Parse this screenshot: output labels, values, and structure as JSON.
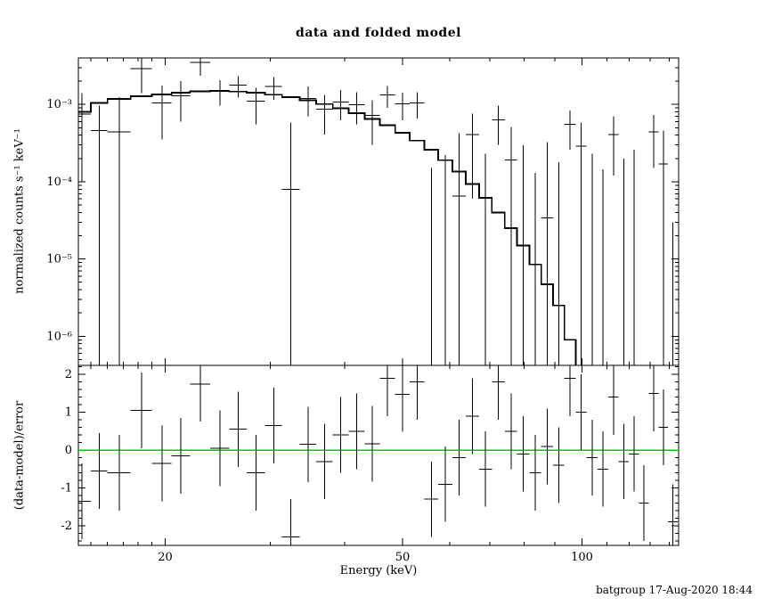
{
  "title": "data and folded model",
  "caption": "batgroup 17-Aug-2020 18:44",
  "chart_data": {
    "type": "scatter",
    "title": "data and folded model",
    "xlabel": "Energy (keV)",
    "x_scale": "log",
    "x_range_keV": [
      14.3,
      145.2
    ],
    "x_ticks": [
      {
        "v": 20,
        "label": "20"
      },
      {
        "v": 50,
        "label": "50"
      },
      {
        "v": 100,
        "label": "100"
      }
    ],
    "colors": {
      "zero_line": "#00C800",
      "data": "#000000",
      "model": "#000000",
      "background": "#FFFFFF"
    },
    "resid_err": 1,
    "panels": [
      {
        "name": "spectrum",
        "ylabel": "normalized counts s⁻¹ keV⁻¹",
        "y_scale": "log",
        "y_range": [
          4.2e-07,
          0.004
        ],
        "y_ticks": [
          {
            "v": 0.001,
            "label": "10⁻³"
          },
          {
            "v": 0.0001,
            "label": "10⁻⁴"
          },
          {
            "v": 1e-05,
            "label": "10⁻⁵"
          },
          {
            "v": 1e-06,
            "label": "10⁻⁶"
          }
        ]
      },
      {
        "name": "delchi",
        "ylabel": "(data-model)/error",
        "y_scale": "linear",
        "y_range": [
          -2.52,
          2.24
        ],
        "y_ticks": [
          {
            "v": 2,
            "label": "2"
          },
          {
            "v": 1,
            "label": "1"
          },
          {
            "v": 0,
            "label": "0"
          },
          {
            "v": -1,
            "label": "-1"
          },
          {
            "v": -2,
            "label": "-2"
          }
        ]
      }
    ],
    "bins": [
      {
        "e": 14.5,
        "ew": 0.5,
        "data": 0.00075,
        "err": 0.00065,
        "model": 0.0008,
        "resid": -1.35
      },
      {
        "e": 15.5,
        "ew": 0.5,
        "data": 0.00046,
        "err": 0.0005,
        "model": 0.00105,
        "resid": -0.55
      },
      {
        "e": 16.75,
        "ew": 0.75,
        "data": 0.00044,
        "err": 0.0008,
        "model": 0.00118,
        "resid": -0.6
      },
      {
        "e": 18.25,
        "ew": 0.75,
        "data": 0.0029,
        "err": 0.0015,
        "model": 0.00128,
        "resid": 1.05
      },
      {
        "e": 19.75,
        "ew": 0.75,
        "data": 0.00105,
        "err": 0.0007,
        "model": 0.00135,
        "resid": -0.35
      },
      {
        "e": 21.25,
        "ew": 0.75,
        "data": 0.0013,
        "err": 0.0007,
        "model": 0.00142,
        "resid": -0.15
      },
      {
        "e": 22.9,
        "ew": 0.9,
        "data": 0.0035,
        "err": 0.00115,
        "model": 0.00148,
        "resid": 1.75
      },
      {
        "e": 24.7,
        "ew": 0.9,
        "data": 0.00152,
        "err": 0.00055,
        "model": 0.0015,
        "resid": 0.05
      },
      {
        "e": 26.5,
        "ew": 0.9,
        "data": 0.00178,
        "err": 0.00055,
        "model": 0.00147,
        "resid": 0.55
      },
      {
        "e": 28.4,
        "ew": 1.0,
        "data": 0.0011,
        "err": 0.00055,
        "model": 0.00142,
        "resid": -0.6
      },
      {
        "e": 30.4,
        "ew": 1.0,
        "data": 0.0017,
        "err": 0.00055,
        "model": 0.00134,
        "resid": 0.65
      },
      {
        "e": 32.5,
        "ew": 1.1,
        "data": 8e-05,
        "err": 0.0005,
        "model": 0.00124,
        "resid": -2.3
      },
      {
        "e": 34.7,
        "ew": 1.1,
        "data": 0.0012,
        "err": 0.0005,
        "model": 0.00113,
        "resid": 0.15
      },
      {
        "e": 37.0,
        "ew": 1.2,
        "data": 0.00087,
        "err": 0.00046,
        "model": 0.00101,
        "resid": -0.3
      },
      {
        "e": 39.4,
        "ew": 1.2,
        "data": 0.00108,
        "err": 0.00046,
        "model": 0.00089,
        "resid": 0.4
      },
      {
        "e": 41.9,
        "ew": 1.3,
        "data": 0.00099,
        "err": 0.00044,
        "model": 0.00077,
        "resid": 0.5
      },
      {
        "e": 44.5,
        "ew": 1.3,
        "data": 0.00072,
        "err": 0.00042,
        "model": 0.00065,
        "resid": 0.17
      },
      {
        "e": 47.2,
        "ew": 1.4,
        "data": 0.00132,
        "err": 0.00041,
        "model": 0.00054,
        "resid": 1.9
      },
      {
        "e": 50.0,
        "ew": 1.4,
        "data": 0.00102,
        "err": 0.0004,
        "model": 0.00043,
        "resid": 1.48
      },
      {
        "e": 52.9,
        "ew": 1.5,
        "data": 0.00105,
        "err": 0.00039,
        "model": 0.00034,
        "resid": 1.8
      },
      {
        "e": 55.9,
        "ew": 1.5,
        "data": -0.00023,
        "err": 0.00038,
        "model": 0.00026,
        "resid": -1.3
      },
      {
        "e": 59.0,
        "ew": 1.6,
        "data": -0.00015,
        "err": 0.00037,
        "model": 0.00019,
        "resid": -0.9
      },
      {
        "e": 62.2,
        "ew": 1.6,
        "data": 6.5e-05,
        "err": 0.00036,
        "model": 0.000135,
        "resid": -0.2
      },
      {
        "e": 65.5,
        "ew": 1.7,
        "data": 0.00041,
        "err": 0.00035,
        "model": 9.3e-05,
        "resid": 0.9
      },
      {
        "e": 68.9,
        "ew": 1.7,
        "data": -0.00011,
        "err": 0.00034,
        "model": 6.2e-05,
        "resid": -0.5
      },
      {
        "e": 72.4,
        "ew": 1.8,
        "data": 0.00063,
        "err": 0.00033,
        "model": 4e-05,
        "resid": 1.8
      },
      {
        "e": 76.0,
        "ew": 1.8,
        "data": 0.00019,
        "err": 0.00032,
        "model": 2.5e-05,
        "resid": 0.5
      },
      {
        "e": 79.7,
        "ew": 1.9,
        "data": -1.5e-05,
        "err": 0.00031,
        "model": 1.5e-05,
        "resid": -0.1
      },
      {
        "e": 83.5,
        "ew": 1.9,
        "data": -0.00017,
        "err": 0.0003,
        "model": 8.5e-06,
        "resid": -0.6
      },
      {
        "e": 87.4,
        "ew": 2.0,
        "data": 3.4e-05,
        "err": 0.00029,
        "model": 4.7e-06,
        "resid": 0.1
      },
      {
        "e": 91.4,
        "ew": 2.0,
        "data": -0.00011,
        "err": 0.00029,
        "model": 2.5e-06,
        "resid": -0.4
      },
      {
        "e": 95.5,
        "ew": 2.1,
        "data": 0.00055,
        "err": 0.00029,
        "model": 9e-07,
        "resid": 1.9
      },
      {
        "e": 99.7,
        "ew": 2.1,
        "data": 0.00029,
        "err": 0.00029,
        "model": null,
        "resid": 1.0
      },
      {
        "e": 104.0,
        "ew": 2.2,
        "data": -6e-05,
        "err": 0.00029,
        "model": null,
        "resid": -0.2
      },
      {
        "e": 108.4,
        "ew": 2.2,
        "data": -0.000145,
        "err": 0.00029,
        "model": null,
        "resid": -0.5
      },
      {
        "e": 112.9,
        "ew": 2.3,
        "data": 0.00041,
        "err": 0.00029,
        "model": null,
        "resid": 1.4
      },
      {
        "e": 117.5,
        "ew": 2.3,
        "data": -9e-05,
        "err": 0.00029,
        "model": null,
        "resid": -0.3
      },
      {
        "e": 122.2,
        "ew": 2.4,
        "data": -3e-05,
        "err": 0.00029,
        "model": null,
        "resid": -0.1
      },
      {
        "e": 127.0,
        "ew": 2.4,
        "data": -0.00041,
        "err": 0.00029,
        "model": null,
        "resid": -1.4
      },
      {
        "e": 131.9,
        "ew": 2.5,
        "data": 0.00044,
        "err": 0.00029,
        "model": null,
        "resid": 1.5
      },
      {
        "e": 136.9,
        "ew": 2.5,
        "data": 0.00017,
        "err": 0.00029,
        "model": null,
        "resid": 0.6
      },
      {
        "e": 142.0,
        "ew": 2.6,
        "data": -0.00026,
        "err": 0.00029,
        "model": null,
        "resid": -1.9
      }
    ]
  }
}
